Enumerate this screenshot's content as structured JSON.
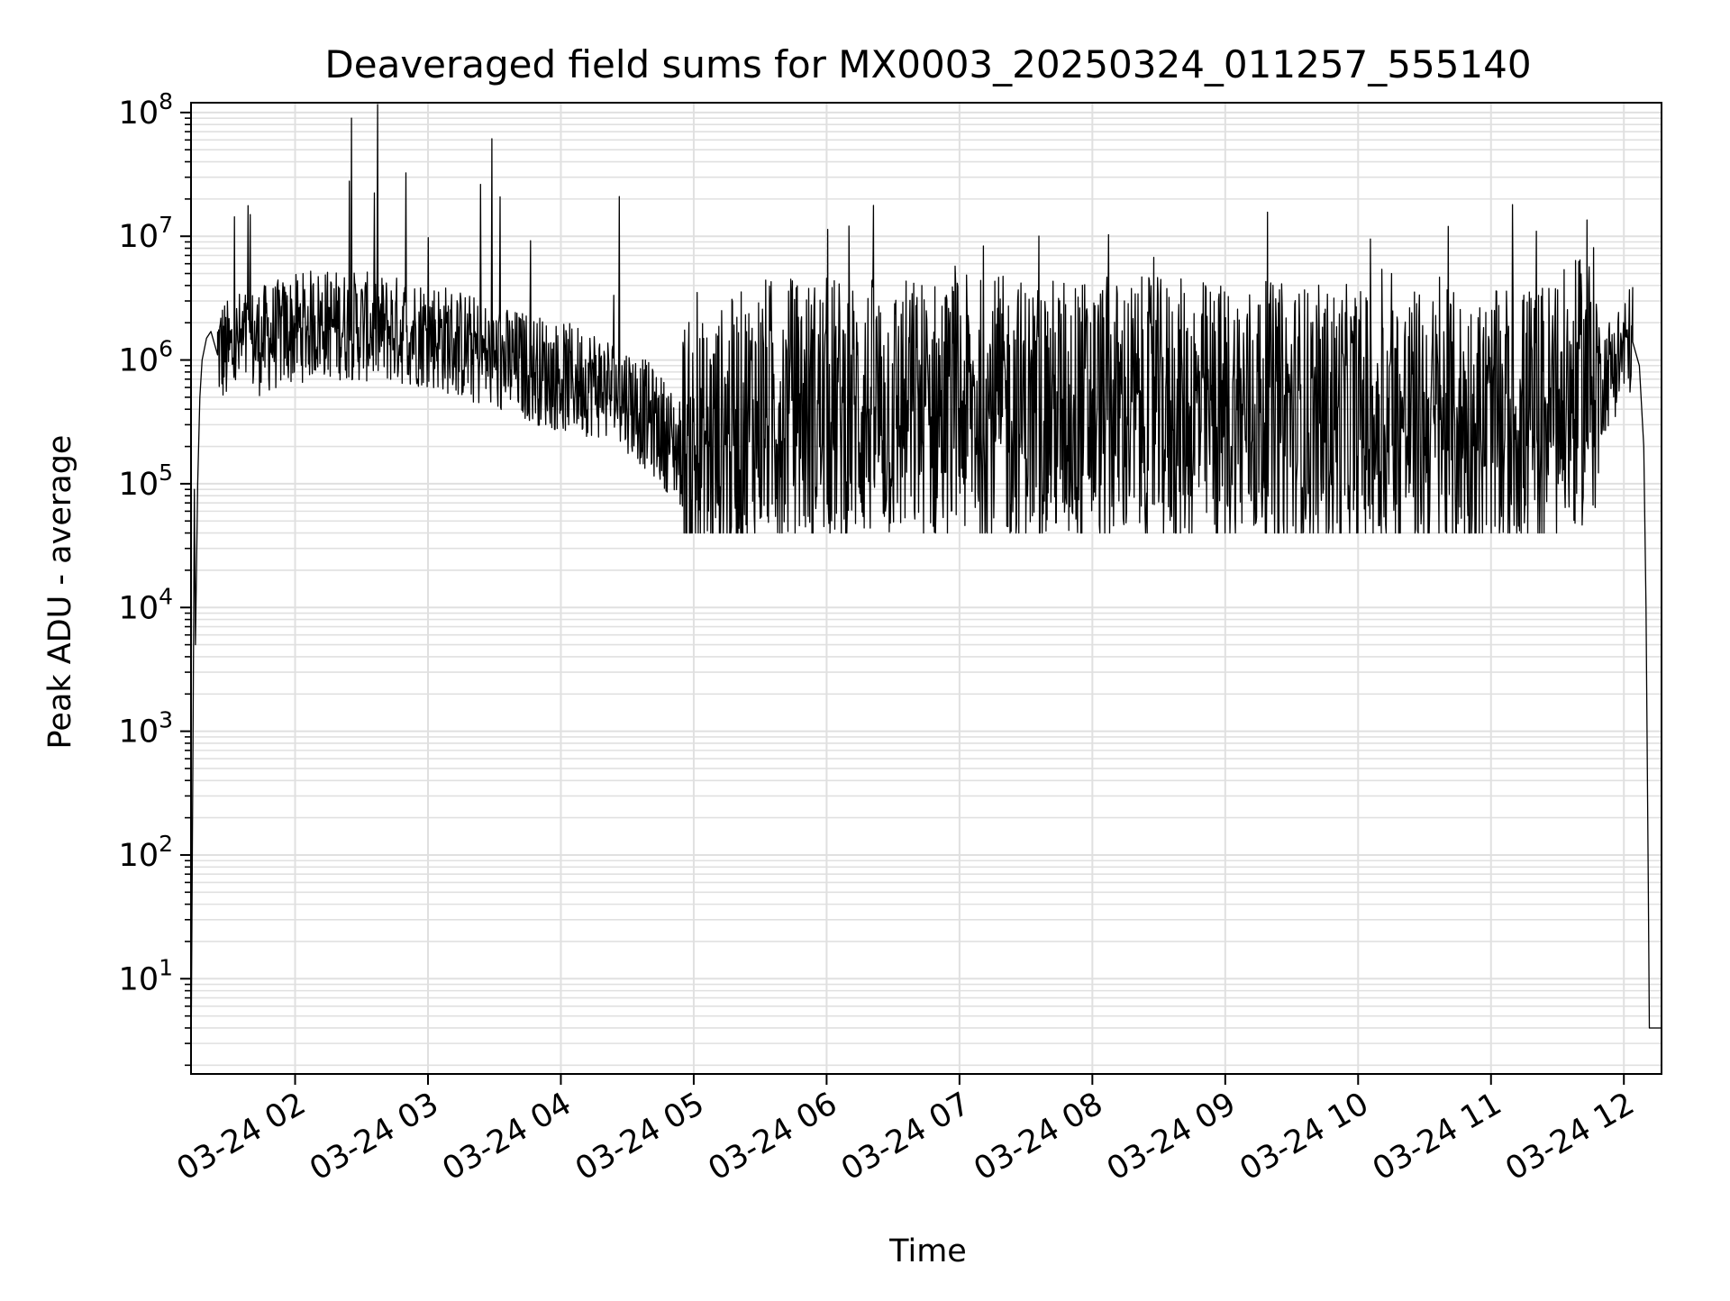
{
  "chart_data": {
    "type": "line",
    "title": "Deaveraged field sums for MX0003_20250324_011257_555140",
    "xlabel": "Time",
    "ylabel": "Peak ADU - average",
    "yscale": "log",
    "ylim": [
      1.7,
      120000000
    ],
    "xlim": [
      "2025-03-24 01:13",
      "2025-03-24 12:17"
    ],
    "grid": true,
    "legend": "none",
    "line_color": "#000000",
    "grid_color": "#e0e0e0",
    "x_ticks": [
      {
        "value": "2025-03-24 02:00",
        "label": "03-24 02"
      },
      {
        "value": "2025-03-24 03:00",
        "label": "03-24 03"
      },
      {
        "value": "2025-03-24 04:00",
        "label": "03-24 04"
      },
      {
        "value": "2025-03-24 05:00",
        "label": "03-24 05"
      },
      {
        "value": "2025-03-24 06:00",
        "label": "03-24 06"
      },
      {
        "value": "2025-03-24 07:00",
        "label": "03-24 07"
      },
      {
        "value": "2025-03-24 08:00",
        "label": "03-24 08"
      },
      {
        "value": "2025-03-24 09:00",
        "label": "03-24 09"
      },
      {
        "value": "2025-03-24 10:00",
        "label": "03-24 10"
      },
      {
        "value": "2025-03-24 11:00",
        "label": "03-24 11"
      },
      {
        "value": "2025-03-24 12:00",
        "label": "03-24 12"
      }
    ],
    "y_ticks": [
      {
        "value": 10,
        "base": "10",
        "exp": "1"
      },
      {
        "value": 100,
        "base": "10",
        "exp": "2"
      },
      {
        "value": 1000,
        "base": "10",
        "exp": "3"
      },
      {
        "value": 10000,
        "base": "10",
        "exp": "4"
      },
      {
        "value": 100000,
        "base": "10",
        "exp": "5"
      },
      {
        "value": 1000000,
        "base": "10",
        "exp": "6"
      },
      {
        "value": 10000000,
        "base": "10",
        "exp": "7"
      },
      {
        "value": 100000000,
        "base": "10",
        "exp": "8"
      }
    ],
    "series": [
      {
        "x": [
          "2025-03-24 01:13",
          "2025-03-24 01:14",
          "2025-03-24 01:14:30",
          "2025-03-24 01:15",
          "2025-03-24 01:16",
          "2025-03-24 01:17",
          "2025-03-24 01:18",
          "2025-03-24 01:20",
          "2025-03-24 01:22",
          "2025-03-24 01:25",
          "2025-03-24 01:30",
          "2025-03-24 01:35",
          "2025-03-24 01:45",
          "2025-03-24 01:55",
          "2025-03-24 02:10",
          "2025-03-24 02:25",
          "2025-03-24 02:40",
          "2025-03-24 03:00",
          "2025-03-24 03:15",
          "2025-03-24 03:30",
          "2025-03-24 03:45",
          "2025-03-24 04:00",
          "2025-03-24 04:15",
          "2025-03-24 04:30",
          "2025-03-24 04:45",
          "2025-03-24 05:00",
          "2025-03-24 05:30",
          "2025-03-24 06:00",
          "2025-03-24 07:00",
          "2025-03-24 08:00",
          "2025-03-24 09:00",
          "2025-03-24 10:00",
          "2025-03-24 11:00",
          "2025-03-24 11:30",
          "2025-03-24 11:50",
          "2025-03-24 12:00",
          "2025-03-24 12:04",
          "2025-03-24 12:07",
          "2025-03-24 12:09",
          "2025-03-24 12:10",
          "2025-03-24 12:11",
          "2025-03-24 12:11:30",
          "2025-03-24 12:12",
          "2025-03-24 12:17"
        ],
        "y": [
          1.7,
          2000,
          90000,
          5000,
          100000,
          500000,
          1000000,
          1500000,
          1700000,
          1100000,
          1000000,
          1200000,
          1300000,
          1500000,
          1800000,
          1700000,
          1600000,
          1500000,
          1200000,
          900000,
          800000,
          650000,
          600000,
          450000,
          250000,
          120000,
          300000,
          300000,
          300000,
          300000,
          280000,
          250000,
          220000,
          300000,
          600000,
          1100000,
          1400000,
          900000,
          200000,
          10000,
          60,
          4,
          4,
          4
        ]
      }
    ]
  }
}
